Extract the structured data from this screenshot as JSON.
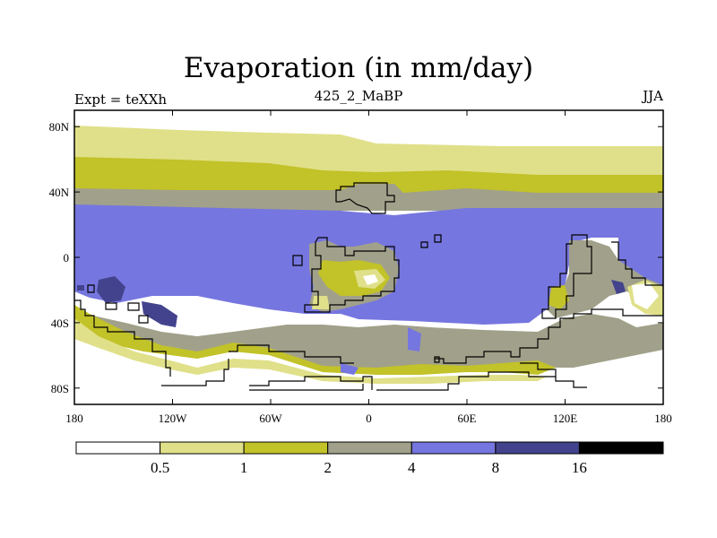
{
  "colors": {
    "white": "#ffffff",
    "pale": "#e0e08a",
    "olive": "#c2c229",
    "gray": "#a1a18b",
    "blue": "#7676e0",
    "darkblue": "#43438d",
    "black": "#000000"
  },
  "chart_data": {
    "type": "heatmap",
    "title": "Evaporation (in mm/day)",
    "left_label": "Expt = teXXh",
    "center_label": "425_2_MaBP",
    "right_label": "JJA",
    "x_ticks": [
      "180",
      "120W",
      "60W",
      "0",
      "60E",
      "120E",
      "180"
    ],
    "x_tick_values": [
      -180,
      -120,
      -60,
      0,
      60,
      120,
      180
    ],
    "y_ticks": [
      "80N",
      "40N",
      "0",
      "40S",
      "80S"
    ],
    "y_tick_values": [
      80,
      40,
      0,
      -40,
      -80
    ],
    "xlim": [
      -180,
      180
    ],
    "ylim": [
      -90,
      90
    ],
    "colorbar": {
      "labels": [
        "0.5",
        "1",
        "2",
        "4",
        "8",
        "16"
      ],
      "levels": [
        0.5,
        1,
        2,
        4,
        8,
        16
      ],
      "bin_colors": [
        "#ffffff",
        "#e0e08a",
        "#c2c229",
        "#a1a18b",
        "#7676e0",
        "#43438d",
        "#000000"
      ]
    }
  }
}
